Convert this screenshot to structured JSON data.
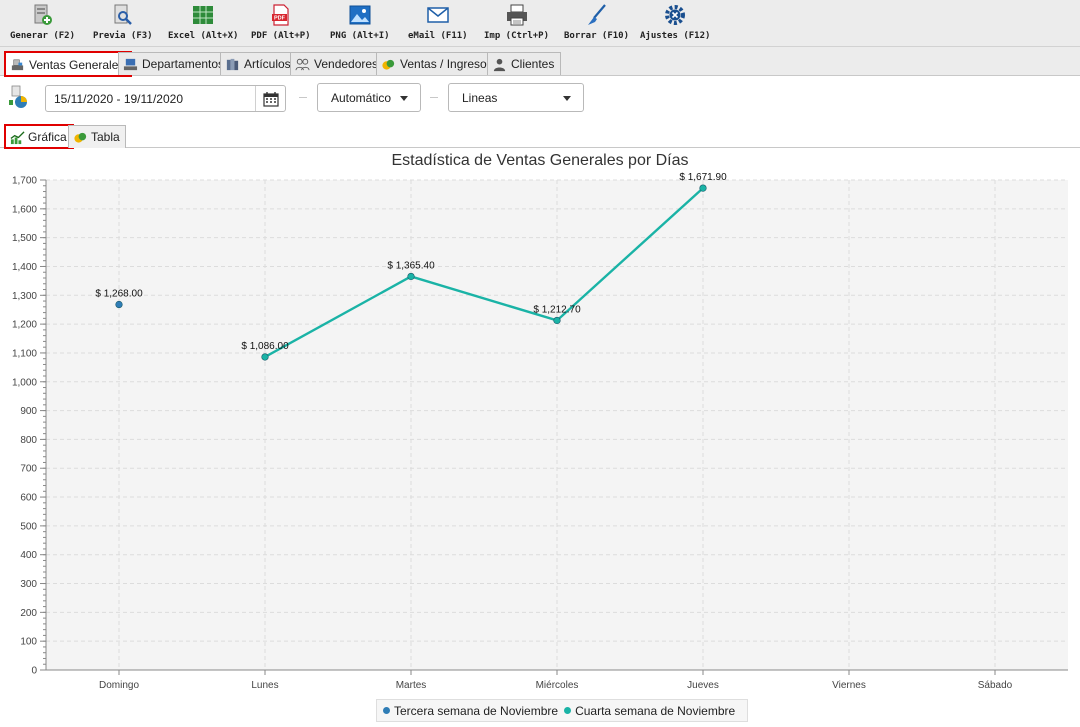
{
  "toolbar": {
    "buttons": [
      {
        "label": "Generar (F2)",
        "icon": "generate-icon"
      },
      {
        "label": "Previa (F3)",
        "icon": "preview-icon"
      },
      {
        "label": "Excel (Alt+X)",
        "icon": "excel-icon"
      },
      {
        "label": "PDF (Alt+P)",
        "icon": "pdf-icon"
      },
      {
        "label": "PNG (Alt+I)",
        "icon": "png-icon"
      },
      {
        "label": "eMail (F11)",
        "icon": "email-icon"
      },
      {
        "label": "Imp (Ctrl+P)",
        "icon": "printer-icon"
      },
      {
        "label": "Borrar (F10)",
        "icon": "broom-icon"
      },
      {
        "label": "Ajustes (F12)",
        "icon": "settings-gear-icon"
      }
    ]
  },
  "main_tabs": [
    {
      "label": "Ventas Generales",
      "active": true
    },
    {
      "label": "Departamentos"
    },
    {
      "label": "Artículos"
    },
    {
      "label": "Vendedores"
    },
    {
      "label": "Ventas / Ingresos"
    },
    {
      "label": "Clientes"
    }
  ],
  "filters": {
    "date_range": "15/11/2020 - 19/11/2020",
    "interval": "Automático",
    "chart_style": "Lineas"
  },
  "sub_tabs": [
    {
      "label": "Gráfica",
      "active": true
    },
    {
      "label": "Tabla"
    }
  ],
  "colors": {
    "series1": "#2f7db6",
    "series2": "#1ab3a6",
    "accent_outline": "#e00000"
  },
  "chart_data": {
    "type": "line",
    "title": "Estadística de Ventas Generales por Días",
    "categories": [
      "Domingo",
      "Lunes",
      "Martes",
      "Miércoles",
      "Jueves",
      "Viernes",
      "Sábado"
    ],
    "ylim": [
      0,
      1700
    ],
    "yticks": [
      "0",
      "100",
      "200",
      "300",
      "400",
      "500",
      "600",
      "700",
      "800",
      "900",
      "1,000",
      "1,100",
      "1,200",
      "1,300",
      "1,400",
      "1,500",
      "1,600",
      "1,700"
    ],
    "grid": true,
    "legend_position": "bottom-center",
    "series": [
      {
        "name": "Tercera semana de Noviembre",
        "values": [
          1268.0,
          null,
          null,
          null,
          null,
          null,
          null
        ],
        "labels": [
          "$ 1,268.00",
          null,
          null,
          null,
          null,
          null,
          null
        ]
      },
      {
        "name": "Cuarta semana de Noviembre",
        "values": [
          null,
          1086.0,
          1365.4,
          1212.7,
          1671.9,
          null,
          null
        ],
        "labels": [
          null,
          "$ 1,086.00",
          "$ 1,365.40",
          "$ 1,212.70",
          "$ 1,671.90",
          null,
          null
        ]
      }
    ]
  }
}
